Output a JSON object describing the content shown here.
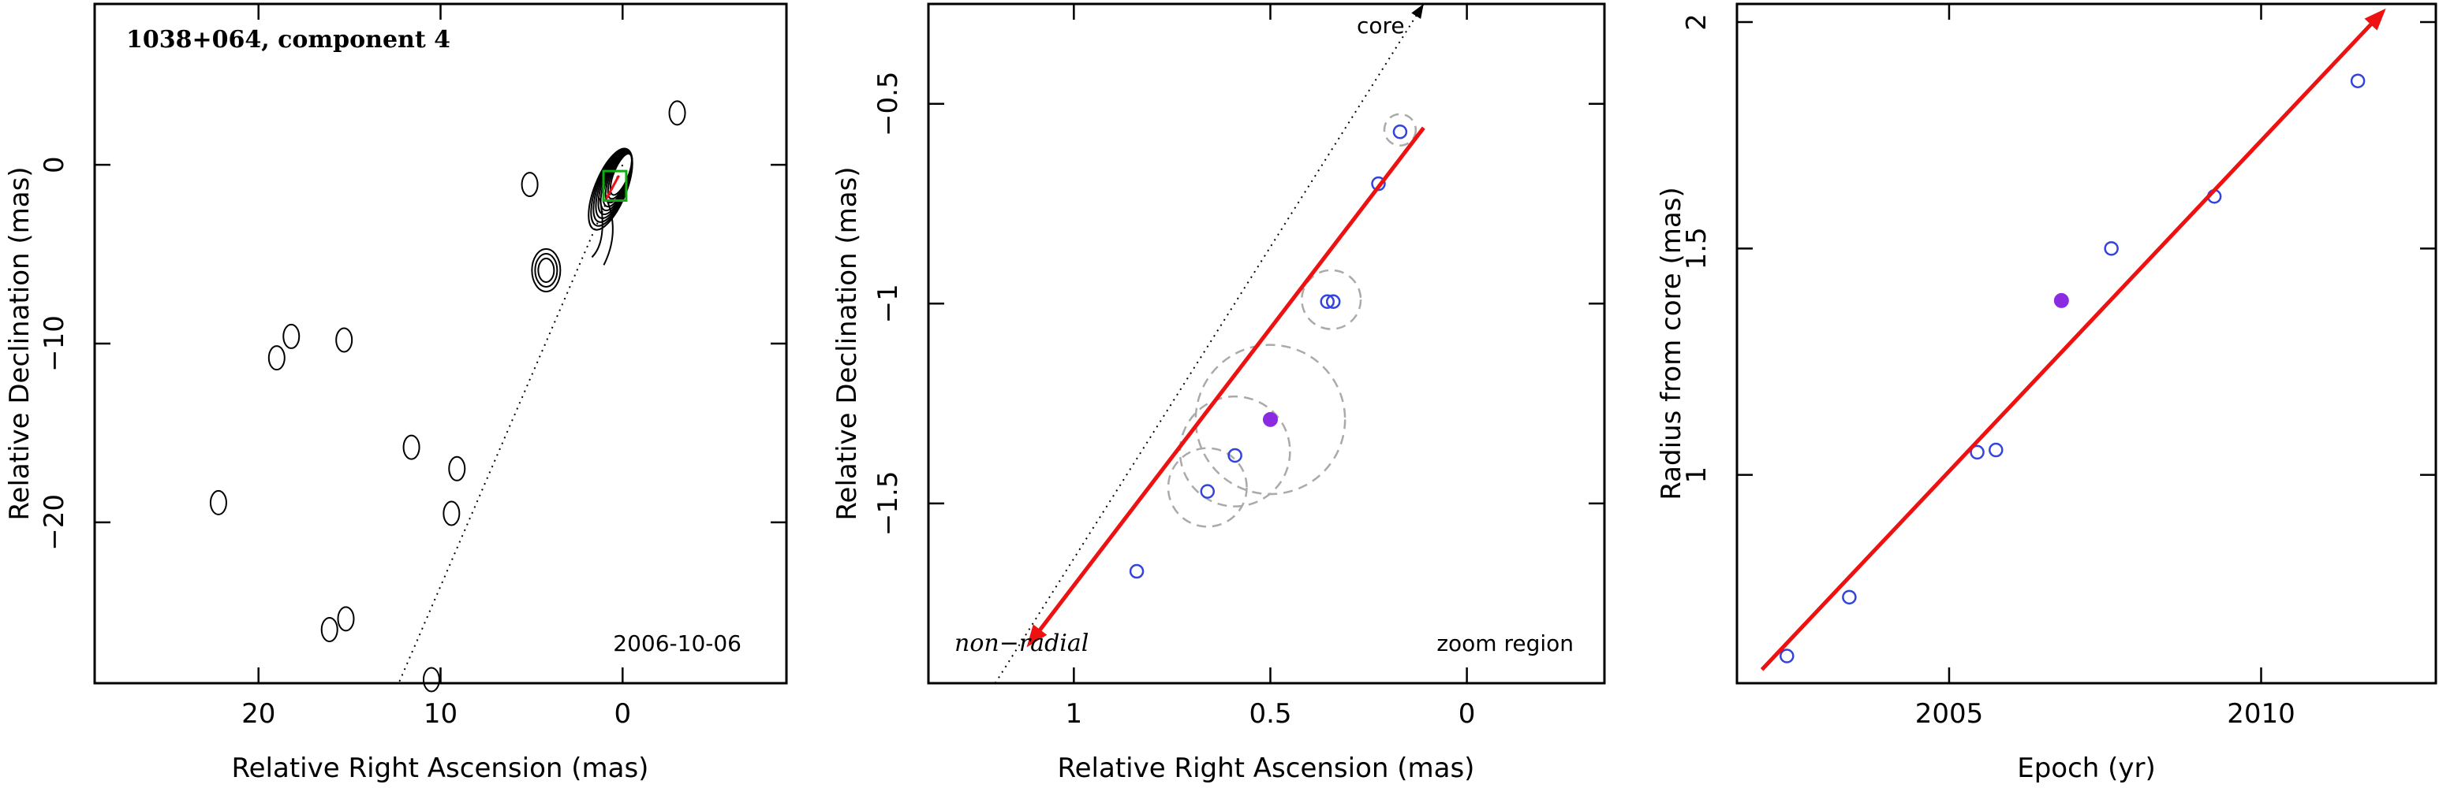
{
  "chart_data": [
    {
      "type": "scatter",
      "panel": "contour-map",
      "title": "1038+064, component 4",
      "date_label": "2006-10-06",
      "xlabel": "Relative Right Ascension (mas)",
      "ylabel": "Relative Declination (mas)",
      "xlim": [
        29,
        -9
      ],
      "ylim": [
        -29,
        9
      ],
      "x_ticks": [
        20,
        10,
        0
      ],
      "y_ticks": [
        0,
        -10,
        -20
      ],
      "x_tick_labels": [
        "20",
        "10",
        "0"
      ],
      "y_tick_labels": [
        "0",
        "−10",
        "−20"
      ],
      "core_position": [
        0,
        0
      ],
      "zoom_box": {
        "ra": [
          1.05,
          -0.2
        ],
        "dec": [
          -2.0,
          -0.35
        ]
      },
      "velocity_vector": {
        "from_ra": 0.9,
        "from_dec": -1.9,
        "to_ra": 0.2,
        "to_dec": -0.6
      },
      "radial_line": {
        "from_ra": 0,
        "from_dec": 0,
        "to_ra": 12.3,
        "to_dec": -29
      },
      "contour_groups": [
        {
          "name": "core",
          "ra": 0.6,
          "dec": -1.2,
          "levels": 10
        },
        {
          "ra": 4.2,
          "dec": -5.9,
          "levels": 3
        },
        {
          "ra": -3.0,
          "dec": 2.9,
          "levels": 1
        },
        {
          "ra": 5.1,
          "dec": -1.1,
          "levels": 1
        },
        {
          "ra": 18.2,
          "dec": -9.6,
          "levels": 1
        },
        {
          "ra": 15.3,
          "dec": -9.8,
          "levels": 1
        },
        {
          "ra": 19.0,
          "dec": -10.8,
          "levels": 1
        },
        {
          "ra": 11.6,
          "dec": -15.8,
          "levels": 1
        },
        {
          "ra": 9.1,
          "dec": -17.0,
          "levels": 1
        },
        {
          "ra": 9.4,
          "dec": -19.5,
          "levels": 1
        },
        {
          "ra": 22.2,
          "dec": -18.9,
          "levels": 1
        },
        {
          "ra": 16.1,
          "dec": -26.0,
          "levels": 1
        },
        {
          "ra": 15.2,
          "dec": -25.4,
          "levels": 1
        },
        {
          "ra": 10.5,
          "dec": -28.8,
          "levels": 1
        }
      ]
    },
    {
      "type": "scatter",
      "panel": "zoom-region",
      "xlabel": "Relative Right Ascension (mas)",
      "ylabel": "Relative Declination (mas)",
      "xlim": [
        1.37,
        -0.35
      ],
      "ylim": [
        -1.95,
        -0.25
      ],
      "x_ticks": [
        1,
        0.5,
        0
      ],
      "y_ticks": [
        -0.5,
        -1,
        -1.5
      ],
      "x_tick_labels": [
        "1",
        "0.5",
        "0"
      ],
      "y_tick_labels": [
        "−0.5",
        "−1",
        "−1.5"
      ],
      "annotations": [
        "core",
        "zoom region",
        "non−radial"
      ],
      "points": [
        {
          "ra": 0.84,
          "dec": -1.67
        },
        {
          "ra": 0.66,
          "dec": -1.47
        },
        {
          "ra": 0.59,
          "dec": -1.38
        },
        {
          "ra": 0.355,
          "dec": -0.995
        },
        {
          "ra": 0.34,
          "dec": -0.995
        },
        {
          "ra": 0.225,
          "dec": -0.7
        },
        {
          "ra": 0.17,
          "dec": -0.57
        }
      ],
      "highlight_point": {
        "ra": 0.5,
        "dec": -1.29
      },
      "error_circles": [
        {
          "ra": 0.66,
          "dec": -1.46,
          "r": 0.1
        },
        {
          "ra": 0.59,
          "dec": -1.37,
          "r": 0.14
        },
        {
          "ra": 0.5,
          "dec": -1.29,
          "r": 0.19
        },
        {
          "ra": 0.345,
          "dec": -0.99,
          "r": 0.075
        },
        {
          "ra": 0.17,
          "dec": -0.565,
          "r": 0.04
        }
      ],
      "velocity_vector": {
        "from_ra": 0.11,
        "from_dec": -0.56,
        "to_ra": 1.12,
        "to_dec": -1.86
      },
      "radial_line": {
        "from_ra": 1.2,
        "from_dec": -1.95,
        "to_ra": 0.11,
        "to_dec": -0.25
      }
    },
    {
      "type": "scatter",
      "panel": "radius-vs-epoch",
      "xlabel": "Epoch (yr)",
      "ylabel": "Radius from core (mas)",
      "xlim": [
        2001.6,
        2012.8
      ],
      "ylim": [
        0.54,
        2.04
      ],
      "x_ticks": [
        2005,
        2010
      ],
      "y_ticks": [
        1,
        1.5,
        2
      ],
      "x_tick_labels": [
        "2005",
        "2010"
      ],
      "y_tick_labels": [
        "1",
        "1.5",
        "2"
      ],
      "points": [
        {
          "x": 2002.4,
          "y": 0.6
        },
        {
          "x": 2003.4,
          "y": 0.73
        },
        {
          "x": 2005.45,
          "y": 1.05
        },
        {
          "x": 2005.75,
          "y": 1.055
        },
        {
          "x": 2007.6,
          "y": 1.5
        },
        {
          "x": 2009.25,
          "y": 1.615
        },
        {
          "x": 2011.55,
          "y": 1.87
        }
      ],
      "highlight_point": {
        "x": 2006.8,
        "y": 1.385
      },
      "fit_line": {
        "x0": 2002.0,
        "y0": 0.57,
        "x1": 2012.0,
        "y1": 2.03
      }
    }
  ],
  "colors": {
    "points": "#3344dd",
    "highlight": "#8a2be2",
    "vector": "#ee1111",
    "circles": "#aaaaaa",
    "zoom_box": "#11aa11"
  }
}
